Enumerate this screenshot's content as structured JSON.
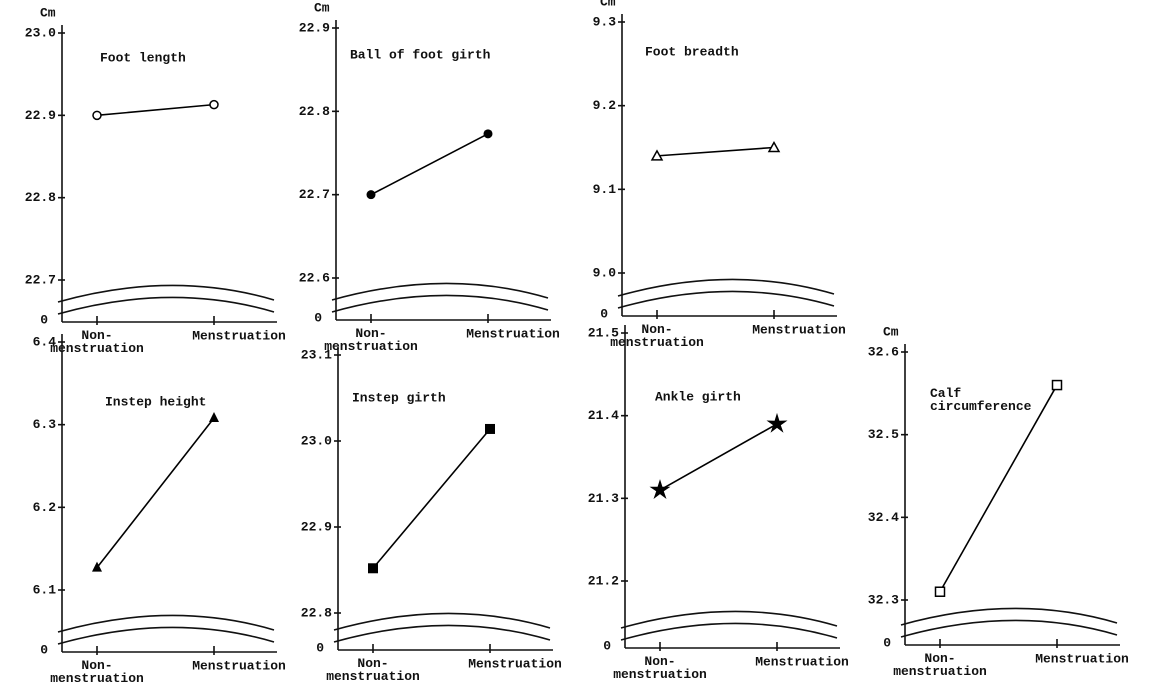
{
  "chart_data": [
    {
      "type": "line",
      "title": "Foot length",
      "y_unit": "Cm",
      "categories": [
        "Non-\nmenstruation",
        "Menstruation"
      ],
      "values": [
        22.9,
        22.913
      ],
      "marker": "circle-open",
      "color": "#000000",
      "ylim": [
        22.7,
        23.0
      ],
      "yticks": [
        22.7,
        22.8,
        22.9,
        {
          "value": 23,
          "label": "23.0"
        }
      ],
      "axis_break_value": 0
    },
    {
      "type": "line",
      "title": "Ball of foot girth",
      "y_unit": "Cm",
      "categories": [
        "Non-\nmenstruation",
        "Menstruation"
      ],
      "values": [
        22.7,
        22.773
      ],
      "marker": "circle-filled",
      "color": "#000000",
      "ylim": [
        22.6,
        22.9
      ],
      "yticks": [
        22.6,
        22.7,
        22.8,
        22.9
      ],
      "axis_break_value": 0
    },
    {
      "type": "line",
      "title": "Foot breadth",
      "y_unit": "Cm",
      "categories": [
        "Non-\nmenstruation",
        "Menstruation"
      ],
      "values": [
        9.14,
        9.15
      ],
      "marker": "triangle-open",
      "color": "#000000",
      "ylim": [
        9.0,
        9.3
      ],
      "yticks": [
        {
          "value": 9,
          "label": "9.0"
        },
        9.1,
        9.2,
        9.3
      ],
      "axis_break_value": 0
    },
    {
      "type": "line",
      "title": "Instep height",
      "categories": [
        "Non-\nmenstruation",
        "Menstruation"
      ],
      "values": [
        6.127,
        6.308
      ],
      "marker": "triangle-filled",
      "color": "#000000",
      "ylim": [
        6.1,
        6.4
      ],
      "yticks": [
        6.1,
        6.2,
        6.3,
        6.4
      ],
      "axis_break_value": 0
    },
    {
      "type": "line",
      "title": "Instep girth",
      "categories": [
        "Non-\nmenstruation",
        "Menstruation"
      ],
      "values": [
        22.852,
        23.014
      ],
      "marker": "square-filled",
      "color": "#000000",
      "ylim": [
        22.8,
        23.1
      ],
      "yticks": [
        22.8,
        22.9,
        {
          "value": 23,
          "label": "23.0"
        },
        23.1
      ],
      "axis_break_value": 0
    },
    {
      "type": "line",
      "title": "Ankle girth",
      "categories": [
        "Non-\nmenstruation",
        "Menstruation"
      ],
      "values": [
        21.31,
        21.39
      ],
      "marker": "star",
      "color": "#000000",
      "ylim": [
        21.2,
        21.5
      ],
      "yticks": [
        21.2,
        21.3,
        21.4,
        21.5
      ],
      "axis_break_value": 0
    },
    {
      "type": "line",
      "title": "Calf\ncircumference",
      "y_unit": "Cm",
      "categories": [
        "Non-\nmenstruation",
        "Menstruation"
      ],
      "values": [
        32.31,
        32.56
      ],
      "marker": "square-open",
      "color": "#000000",
      "ylim": [
        32.3,
        32.6
      ],
      "yticks": [
        32.3,
        32.4,
        32.5,
        32.6
      ],
      "axis_break_value": 0
    }
  ]
}
